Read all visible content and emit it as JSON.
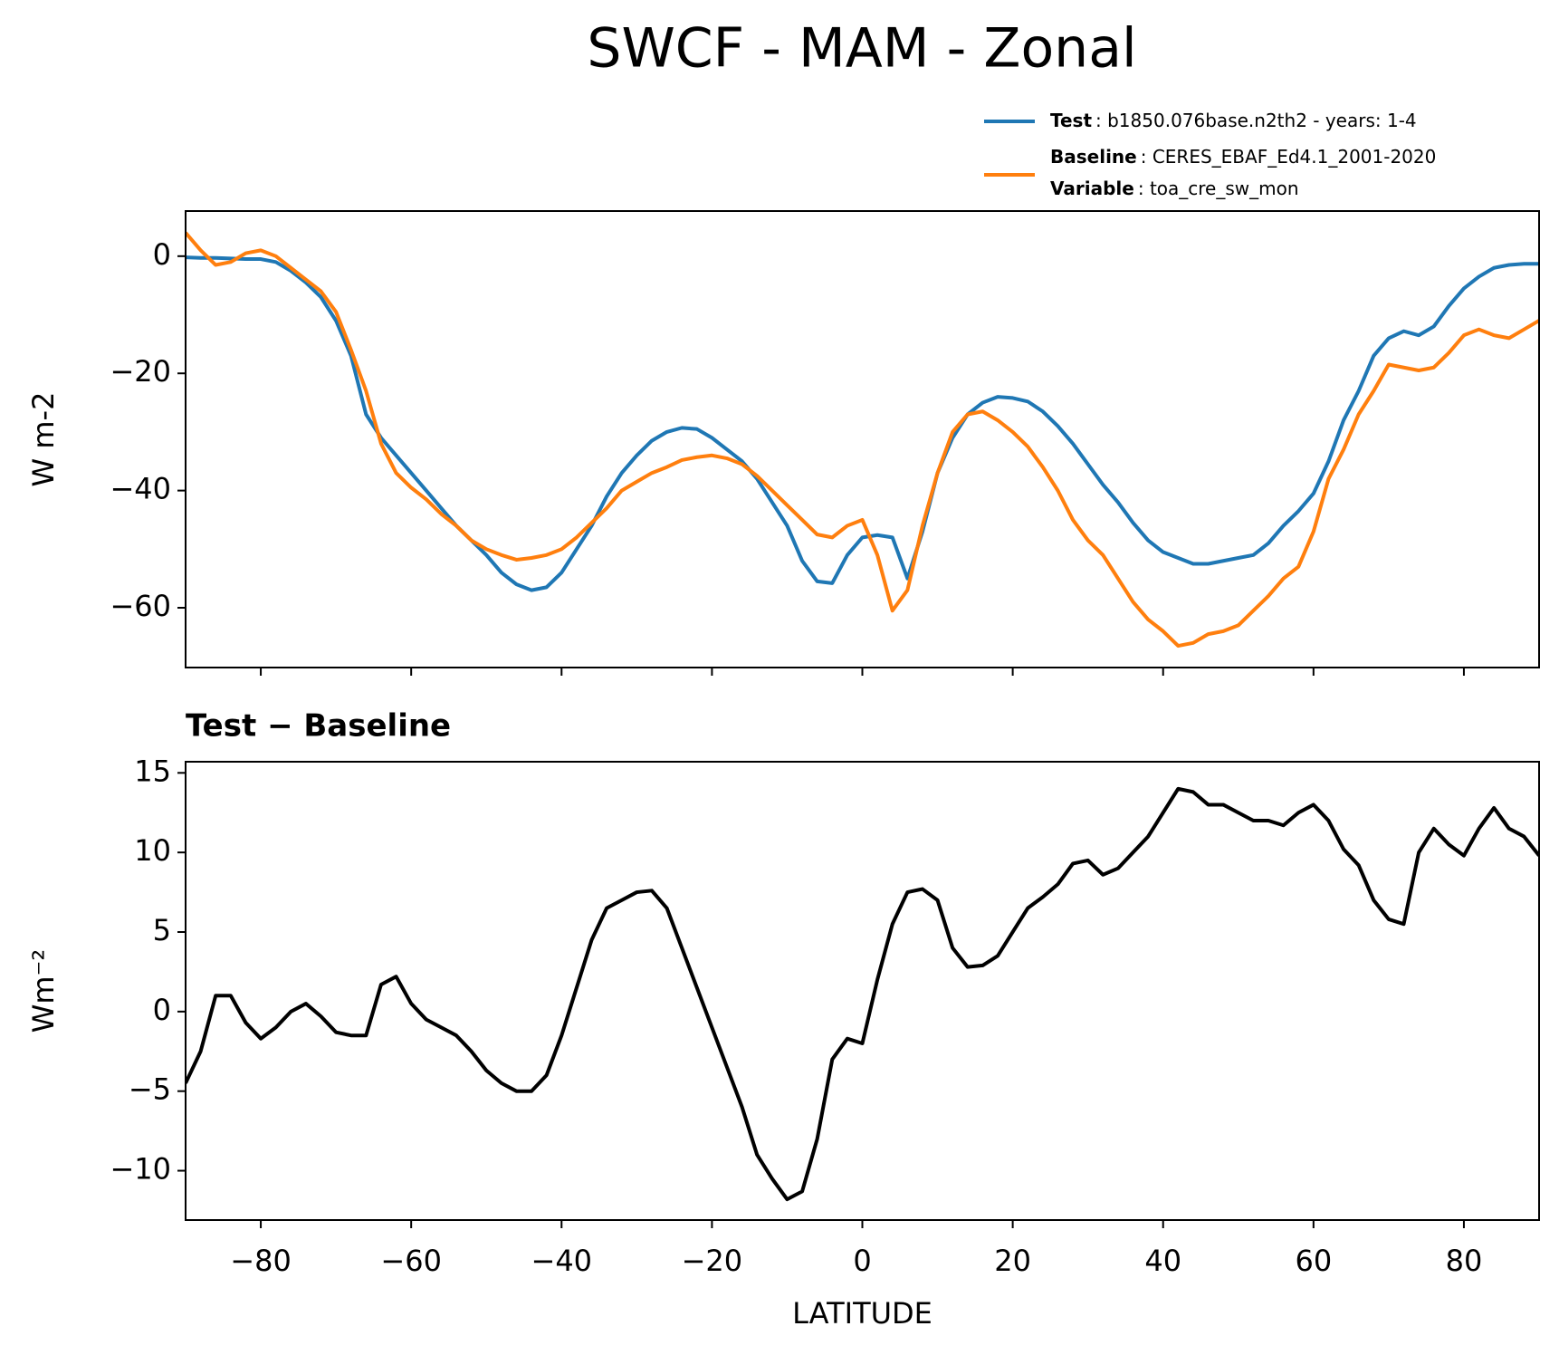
{
  "chart_data": [
    {
      "type": "line",
      "title": "SWCF - MAM - Zonal",
      "ylabel": "W m-2",
      "x": [
        -90,
        -88,
        -86,
        -84,
        -82,
        -80,
        -78,
        -76,
        -74,
        -72,
        -70,
        -68,
        -66,
        -64,
        -62,
        -60,
        -58,
        -56,
        -54,
        -52,
        -50,
        -48,
        -46,
        -44,
        -42,
        -40,
        -38,
        -36,
        -34,
        -32,
        -30,
        -28,
        -26,
        -24,
        -22,
        -20,
        -18,
        -16,
        -14,
        -12,
        -10,
        -8,
        -6,
        -4,
        -2,
        0,
        2,
        4,
        6,
        8,
        10,
        12,
        14,
        16,
        18,
        20,
        22,
        24,
        26,
        28,
        30,
        32,
        34,
        36,
        38,
        40,
        42,
        44,
        46,
        48,
        50,
        52,
        54,
        56,
        58,
        60,
        62,
        64,
        66,
        68,
        70,
        72,
        74,
        76,
        78,
        80,
        82,
        84,
        86,
        88,
        90
      ],
      "series": [
        {
          "name": "Test",
          "description": ": b1850.076base.n2th2 - years: 1-4",
          "color": "#1f77b4",
          "values": [
            -0.2,
            -0.3,
            -0.3,
            -0.4,
            -0.5,
            -0.5,
            -1,
            -2.5,
            -4.5,
            -7,
            -11,
            -17,
            -27,
            -31,
            -34,
            -37,
            -40,
            -43,
            -46,
            -48.5,
            -51,
            -54,
            -56,
            -57,
            -56.5,
            -54,
            -50,
            -46,
            -41,
            -37,
            -34,
            -31.5,
            -30,
            -29.3,
            -29.5,
            -31,
            -33,
            -35,
            -38,
            -42,
            -46,
            -52,
            -55.5,
            -55.8,
            -51,
            -48,
            -47.6,
            -48,
            -55,
            -47,
            -37,
            -31,
            -27,
            -25,
            -24,
            -24.2,
            -24.8,
            -26.5,
            -29,
            -32,
            -35.5,
            -39,
            -42,
            -45.5,
            -48.5,
            -50.5,
            -51.5,
            -52.5,
            -52.5,
            -52,
            -51.5,
            -51,
            -49,
            -46,
            -43.5,
            -40.5,
            -35,
            -28,
            -23,
            -17,
            -14,
            -12.8,
            -13.5,
            -12,
            -8.5,
            -5.5,
            -3.5,
            -2,
            -1.5,
            -1.3,
            -1.3
          ]
        },
        {
          "name": "Baseline",
          "description": ": CERES_EBAF_Ed4.1_2001-2020",
          "color": "#ff7f0e",
          "values": [
            4,
            1,
            -1.5,
            -1,
            0.5,
            1,
            0,
            -2,
            -4,
            -6,
            -9.5,
            -16,
            -23,
            -32,
            -37,
            -39.5,
            -41.5,
            -44,
            -46,
            -48.5,
            -50,
            -51,
            -51.8,
            -51.5,
            -51,
            -50,
            -48,
            -45.5,
            -43,
            -40,
            -38.5,
            -37,
            -36,
            -34.8,
            -34.3,
            -34,
            -34.5,
            -35.5,
            -37.5,
            -40,
            -42.5,
            -45,
            -47.5,
            -48,
            -46,
            -45,
            -51,
            -60.5,
            -57,
            -46,
            -37,
            -30,
            -27,
            -26.5,
            -28,
            -30,
            -32.5,
            -36,
            -40,
            -45,
            -48.5,
            -51,
            -55,
            -59,
            -62,
            -64,
            -66.5,
            -66,
            -64.5,
            -64,
            -63,
            -60.5,
            -58,
            -55,
            -53,
            -47,
            -38,
            -33,
            -27,
            -23,
            -18.5,
            -19,
            -19.5,
            -19,
            -16.5,
            -13.5,
            -12.5,
            -13.5,
            -14,
            -12.5,
            -11
          ]
        }
      ],
      "legend_extra": {
        "name": "Variable",
        "description": ": toa_cre_sw_mon"
      },
      "xlim": [
        -90,
        90
      ],
      "xticks": [
        -80,
        -60,
        -40,
        -20,
        0,
        20,
        40,
        60,
        80
      ],
      "xtick_labels": false,
      "ylim": [
        -70.2,
        7.7
      ],
      "yticks": [
        {
          "value": -60,
          "label": "−60"
        },
        {
          "value": -40,
          "label": "−40"
        },
        {
          "value": -20,
          "label": "−20"
        },
        0
      ]
    },
    {
      "type": "line",
      "title": "Test − Baseline",
      "ylabel": "Wm⁻²",
      "xlabel": "LATITUDE",
      "x": [
        -90,
        -88,
        -86,
        -84,
        -82,
        -80,
        -78,
        -76,
        -74,
        -72,
        -70,
        -68,
        -66,
        -64,
        -62,
        -60,
        -58,
        -56,
        -54,
        -52,
        -50,
        -48,
        -46,
        -44,
        -42,
        -40,
        -38,
        -36,
        -34,
        -32,
        -30,
        -28,
        -26,
        -24,
        -22,
        -20,
        -18,
        -16,
        -14,
        -12,
        -10,
        -8,
        -6,
        -4,
        -2,
        0,
        2,
        4,
        6,
        8,
        10,
        12,
        14,
        16,
        18,
        20,
        22,
        24,
        26,
        28,
        30,
        32,
        34,
        36,
        38,
        40,
        42,
        44,
        46,
        48,
        50,
        52,
        54,
        56,
        58,
        60,
        62,
        64,
        66,
        68,
        70,
        72,
        74,
        76,
        78,
        80,
        82,
        84,
        86,
        88,
        90
      ],
      "series": [
        {
          "color": "#000000",
          "values": [
            -4.5,
            -2.5,
            1,
            1,
            -0.7,
            -1.7,
            -1,
            0,
            0.5,
            -0.3,
            -1.3,
            -1.5,
            -1.5,
            1.7,
            2.2,
            0.5,
            -0.5,
            -1,
            -1.5,
            -2.5,
            -3.7,
            -4.5,
            -5,
            -5,
            -4,
            -1.5,
            1.5,
            4.5,
            6.5,
            7,
            7.5,
            7.6,
            6.5,
            4,
            1.5,
            -1,
            -3.5,
            -6,
            -9,
            -10.5,
            -11.8,
            -11.3,
            -8,
            -3,
            -1.7,
            -2,
            2,
            5.5,
            7.5,
            7.7,
            7,
            4,
            2.8,
            2.9,
            3.5,
            5,
            6.5,
            7.2,
            8,
            9.3,
            9.5,
            8.6,
            9,
            10,
            11,
            12.5,
            14,
            13.8,
            13,
            13,
            12.5,
            12,
            12,
            11.7,
            12.5,
            13,
            12,
            10.2,
            9.2,
            7,
            5.8,
            5.5,
            10,
            11.5,
            10.5,
            9.8,
            11.5,
            12.8,
            11.5,
            11,
            9.8
          ]
        }
      ],
      "xlim": [
        -90,
        90
      ],
      "xticks": [
        {
          "value": -80,
          "label": "−80"
        },
        {
          "value": -60,
          "label": "−60"
        },
        {
          "value": -40,
          "label": "−40"
        },
        {
          "value": -20,
          "label": "−20"
        },
        0,
        20,
        40,
        60,
        80
      ],
      "xtick_labels": true,
      "ylim": [
        -13.1,
        15.7
      ],
      "yticks": [
        {
          "value": -10,
          "label": "−10"
        },
        {
          "value": -5,
          "label": "−5"
        },
        0,
        5,
        10,
        15
      ]
    }
  ]
}
